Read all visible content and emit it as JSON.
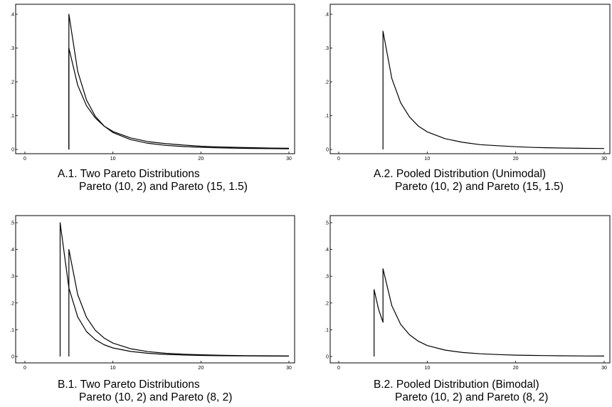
{
  "chart_data": [
    {
      "type": "line",
      "caption_line1": "A.1.  Two Pareto Distributions",
      "caption_line2": "Pareto (10, 2) and Pareto (15, 1.5)",
      "xlim": [
        0,
        30
      ],
      "ylim": [
        0,
        0.4
      ],
      "xticks": [
        0,
        10,
        20,
        30
      ],
      "xtick_labels": [
        "0",
        "10",
        "20",
        "30"
      ],
      "yticks": [
        0,
        0.1,
        0.2,
        0.3,
        0.4
      ],
      "ytick_labels": [
        "0",
        ".1",
        ".2",
        ".3",
        ".4"
      ],
      "grid": false,
      "series": [
        {
          "x": [
            5,
            6,
            7,
            8,
            9,
            10,
            12,
            14,
            16,
            18,
            20,
            22,
            25,
            28,
            30
          ],
          "y": [
            0.4,
            0.231,
            0.146,
            0.098,
            0.069,
            0.05,
            0.029,
            0.018,
            0.012,
            0.0086,
            0.0063,
            0.0047,
            0.0032,
            0.0023,
            0.0019
          ]
        },
        {
          "x": [
            5,
            6,
            7,
            8,
            9,
            10,
            12,
            14,
            16,
            18,
            20,
            22,
            25,
            28,
            30
          ],
          "y": [
            0.3,
            0.19,
            0.129,
            0.093,
            0.069,
            0.053,
            0.034,
            0.023,
            0.017,
            0.013,
            0.0094,
            0.0074,
            0.0054,
            0.0041,
            0.0034
          ]
        }
      ]
    },
    {
      "type": "line",
      "caption_line1": "A.2.  Pooled Distribution (Unimodal)",
      "caption_line2": "Pareto (10, 2) and Pareto (15, 1.5)",
      "xlim": [
        0,
        30
      ],
      "ylim": [
        0,
        0.4
      ],
      "xticks": [
        0,
        10,
        20,
        30
      ],
      "xtick_labels": [
        "0",
        "10",
        "20",
        "30"
      ],
      "yticks": [
        0,
        0.1,
        0.2,
        0.3,
        0.4
      ],
      "ytick_labels": [
        "0",
        ".1",
        ".2",
        ".3",
        ".4"
      ],
      "grid": false,
      "series": [
        {
          "x": [
            5,
            6,
            7,
            8,
            9,
            10,
            12,
            14,
            16,
            18,
            20,
            22,
            25,
            28,
            30
          ],
          "y": [
            0.35,
            0.21,
            0.138,
            0.096,
            0.069,
            0.052,
            0.032,
            0.021,
            0.014,
            0.011,
            0.0079,
            0.006,
            0.0043,
            0.0032,
            0.0027
          ]
        }
      ]
    },
    {
      "type": "line",
      "caption_line1": "B.1.  Two Pareto Distributions",
      "caption_line2": "Pareto (10, 2) and Pareto (8, 2)",
      "xlim": [
        0,
        30
      ],
      "ylim": [
        0,
        0.5
      ],
      "xticks": [
        0,
        10,
        20,
        30
      ],
      "xtick_labels": [
        "0",
        "10",
        "20",
        "30"
      ],
      "yticks": [
        0,
        0.1,
        0.2,
        0.3,
        0.4,
        0.5
      ],
      "ytick_labels": [
        "0",
        ".1",
        ".2",
        ".3",
        ".4",
        ".5"
      ],
      "grid": false,
      "series": [
        {
          "x": [
            4,
            5,
            6,
            7,
            8,
            9,
            10,
            12,
            14,
            16,
            18,
            20,
            22,
            25,
            28,
            30
          ],
          "y": [
            0.5,
            0.256,
            0.148,
            0.093,
            0.063,
            0.044,
            0.032,
            0.019,
            0.012,
            0.0078,
            0.0055,
            0.004,
            0.003,
            0.002,
            0.0015,
            0.0012
          ]
        },
        {
          "x": [
            5,
            6,
            7,
            8,
            9,
            10,
            12,
            14,
            16,
            18,
            20,
            22,
            25,
            28,
            30
          ],
          "y": [
            0.4,
            0.231,
            0.146,
            0.098,
            0.069,
            0.05,
            0.029,
            0.018,
            0.012,
            0.0086,
            0.0063,
            0.0047,
            0.0032,
            0.0023,
            0.0019
          ]
        }
      ]
    },
    {
      "type": "line",
      "caption_line1": "B.2.  Pooled Distribution (Bimodal)",
      "caption_line2": "Pareto (10, 2) and Pareto (8, 2)",
      "xlim": [
        0,
        30
      ],
      "ylim": [
        0,
        0.5
      ],
      "xticks": [
        0,
        10,
        20,
        30
      ],
      "xtick_labels": [
        "0",
        "10",
        "20",
        "30"
      ],
      "yticks": [
        0,
        0.1,
        0.2,
        0.3,
        0.4,
        0.5
      ],
      "ytick_labels": [
        "0",
        ".1",
        ".2",
        ".3",
        ".4",
        ".5"
      ],
      "grid": false,
      "series": [
        {
          "x": [
            4,
            4.5,
            5,
            5,
            6,
            7,
            8,
            9,
            10,
            12,
            14,
            16,
            18,
            20,
            22,
            25,
            28,
            30
          ],
          "y": [
            0.25,
            0.176,
            0.128,
            0.328,
            0.19,
            0.12,
            0.081,
            0.057,
            0.041,
            0.024,
            0.015,
            0.01,
            0.0071,
            0.0051,
            0.0039,
            0.0026,
            0.0019,
            0.0016
          ]
        }
      ]
    }
  ]
}
